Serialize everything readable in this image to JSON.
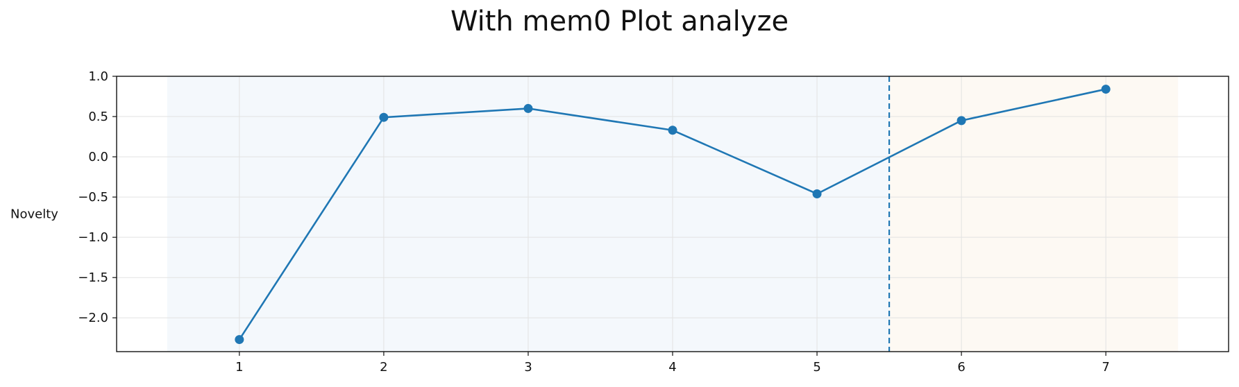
{
  "chart_data": {
    "type": "line",
    "title": "With mem0 Plot analyze",
    "xlabel": "",
    "ylabel": "Novelty",
    "x": [
      1,
      2,
      3,
      4,
      5,
      6,
      7
    ],
    "series": [
      {
        "name": "",
        "values": [
          -2.27,
          0.49,
          0.6,
          0.33,
          -0.46,
          0.45,
          0.84
        ],
        "color": "#1f77b4"
      }
    ],
    "xlim": [
      0.15,
      7.85
    ],
    "ylim": [
      -2.42,
      1.0
    ],
    "xticks": [
      1,
      2,
      3,
      4,
      5,
      6,
      7
    ],
    "yticks": [
      1.0,
      0.5,
      0.0,
      -0.5,
      -1.0,
      -1.5,
      -2.0
    ],
    "ytick_labels": [
      "1.0",
      "0.5",
      "0.0",
      "−0.5",
      "−1.0",
      "−1.5",
      "−2.0"
    ],
    "shaded_regions": [
      {
        "x_start": 0.5,
        "x_end": 5.5,
        "color": "#f4f8fc"
      },
      {
        "x_start": 5.5,
        "x_end": 7.5,
        "color": "#fdf9f3"
      }
    ],
    "vertical_line": {
      "x": 5.5,
      "style": "dashed",
      "color": "#1f77b4"
    },
    "grid": true,
    "legend": "none"
  }
}
